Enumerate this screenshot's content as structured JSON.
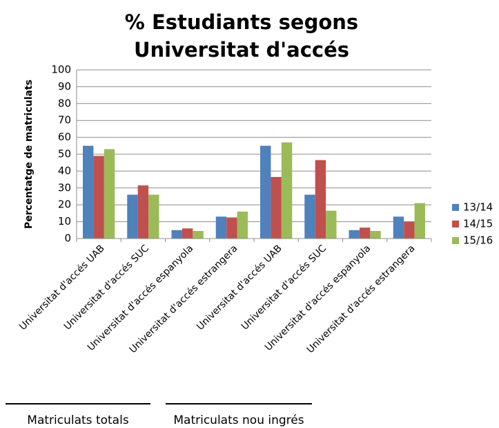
{
  "chart_data": {
    "type": "bar",
    "title": "% Estudiants segons Universitat d'accés",
    "y_label": "Percentatge de matriculats",
    "categories": [
      "Universitat d'accés UAB",
      "Universitat d'accés SUC",
      "Universitat d'accés espanyola",
      "Universitat d'accés estrangera",
      "Universitat d'accés UAB",
      "Universitat d'accés SUC",
      "Universitat d'accés espanyola",
      "Universitat d'accés estrangera"
    ],
    "series": [
      {
        "name": "13/14",
        "color": "#4f81bd",
        "values": [
          55,
          26,
          5,
          13,
          55,
          26,
          5,
          13
        ]
      },
      {
        "name": "14/15",
        "color": "#c0504d",
        "values": [
          49,
          31.5,
          6,
          12.5,
          36.5,
          46.5,
          6.5,
          10
        ]
      },
      {
        "name": "15/16",
        "color": "#9bbb59",
        "values": [
          53,
          26,
          4.5,
          16,
          57,
          16.5,
          4.5,
          21
        ]
      }
    ],
    "groups": [
      {
        "label": "Matriculats totals"
      },
      {
        "label": "Matriculats nou ingrés"
      }
    ],
    "ylim": [
      0,
      100
    ],
    "yticks": [
      0,
      10,
      20,
      30,
      40,
      50,
      60,
      70,
      80,
      90,
      100
    ],
    "grid": true,
    "legend": "right"
  }
}
